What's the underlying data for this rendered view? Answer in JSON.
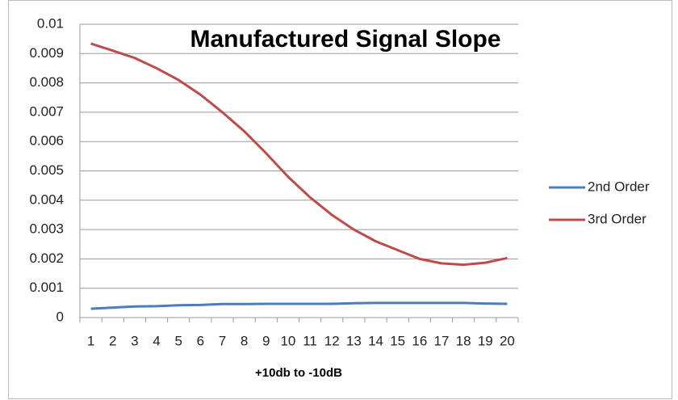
{
  "chart_data": {
    "type": "line",
    "title": "Manufactured Signal Slope",
    "x_label": "+10db to -10dB",
    "categories": [
      "1",
      "2",
      "3",
      "4",
      "5",
      "6",
      "7",
      "8",
      "9",
      "10",
      "11",
      "12",
      "13",
      "14",
      "15",
      "16",
      "17",
      "18",
      "19",
      "20"
    ],
    "series": [
      {
        "name": "2nd Order",
        "color": "#4a7ebb",
        "values": [
          0.0003,
          0.00034,
          0.00038,
          0.00039,
          0.00042,
          0.00043,
          0.00046,
          0.00046,
          0.00047,
          0.00047,
          0.00047,
          0.00047,
          0.00049,
          0.0005,
          0.0005,
          0.0005,
          0.0005,
          0.0005,
          0.00048,
          0.00047
        ]
      },
      {
        "name": "3rd Order",
        "color": "#be4b48",
        "values": [
          0.00934,
          0.0091,
          0.00885,
          0.0085,
          0.0081,
          0.0076,
          0.007,
          0.00635,
          0.0056,
          0.0048,
          0.0041,
          0.0035,
          0.003,
          0.0026,
          0.0023,
          0.002,
          0.00185,
          0.0018,
          0.00187,
          0.00203
        ]
      }
    ],
    "ylim": [
      0,
      0.01
    ],
    "yticks": [
      0,
      0.001,
      0.002,
      0.003,
      0.004,
      0.005,
      0.006,
      0.007,
      0.008,
      0.009,
      0.01
    ],
    "grid": true,
    "legend": "right"
  }
}
